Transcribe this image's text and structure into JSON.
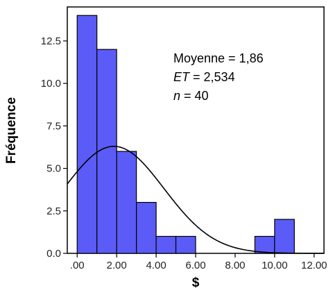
{
  "chart_data": {
    "type": "bar",
    "subtype": "histogram",
    "xlabel": "$",
    "ylabel": "Fréquence",
    "xlim": [
      -0.5,
      12.5
    ],
    "ylim": [
      0,
      14.5
    ],
    "bin_width": 1,
    "bins": [
      {
        "start": 0,
        "end": 1,
        "value": 14
      },
      {
        "start": 1,
        "end": 2,
        "value": 12
      },
      {
        "start": 2,
        "end": 3,
        "value": 6
      },
      {
        "start": 3,
        "end": 4,
        "value": 3
      },
      {
        "start": 4,
        "end": 5,
        "value": 1
      },
      {
        "start": 5,
        "end": 6,
        "value": 1
      },
      {
        "start": 9,
        "end": 10,
        "value": 1
      },
      {
        "start": 10,
        "end": 11,
        "value": 2
      }
    ],
    "x_ticks": [
      0,
      2,
      4,
      6,
      8,
      10,
      12
    ],
    "x_tick_labels": [
      ".00",
      "2.00",
      "4.00",
      "6.00",
      "8.00",
      "10.00",
      "12.00"
    ],
    "y_ticks": [
      0,
      2.5,
      5,
      7.5,
      10,
      12.5
    ],
    "y_tick_labels": [
      "0.0",
      "2.5",
      "5.0",
      "7.5",
      "10.0",
      "12.5"
    ],
    "normal_curve": {
      "mean": 1.86,
      "sd": 2.534,
      "n": 40
    },
    "annotations": {
      "mean_label": "Moyenne = 1,86",
      "sd_label_italic": "ET",
      "sd_label_rest": " = 2,534",
      "n_label_italic": "n",
      "n_label_rest": " = 40"
    },
    "grid": false,
    "colors": {
      "bars": "#5b5bf7",
      "edges": "#000000",
      "curve": "#000000"
    }
  }
}
